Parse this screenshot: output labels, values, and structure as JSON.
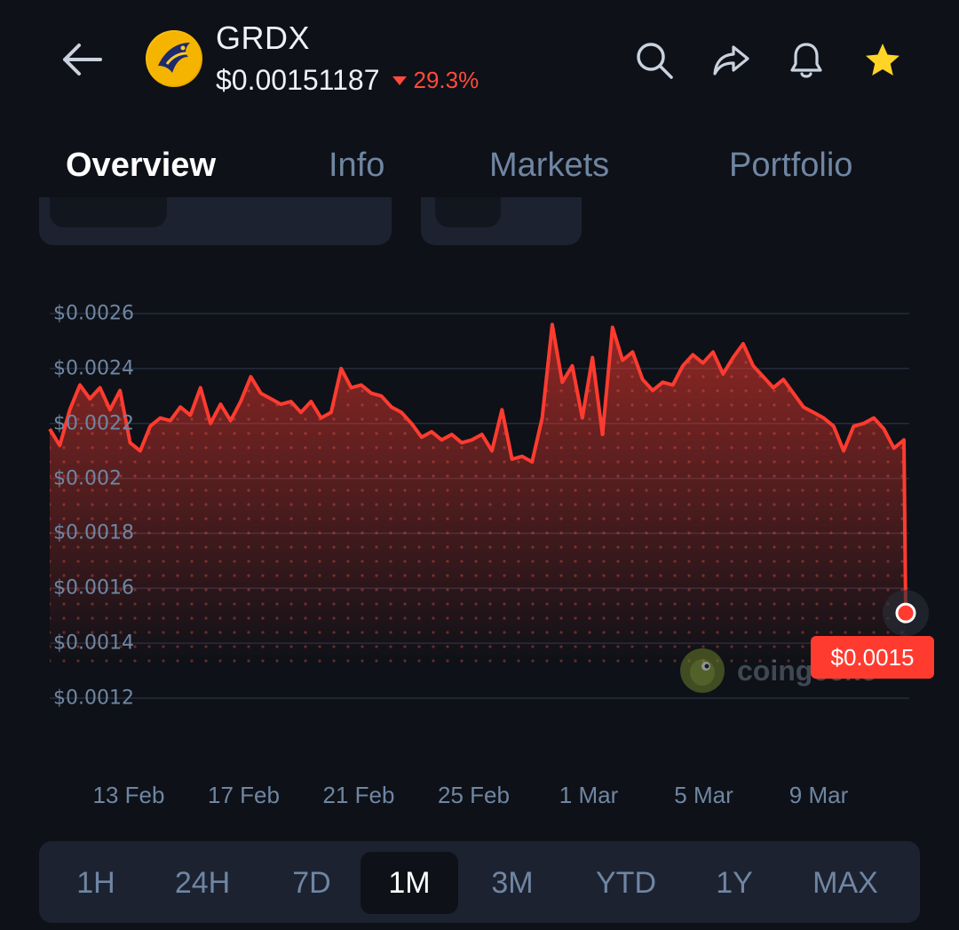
{
  "header": {
    "back_icon": "back-arrow-icon",
    "coin_logo": "gardex-logo",
    "symbol": "GRDX",
    "price": "$0.00151187",
    "change": "29.3%",
    "change_direction": "down",
    "change_color": "#ff4a3d",
    "actions": [
      {
        "icon": "search-icon"
      },
      {
        "icon": "share-icon"
      },
      {
        "icon": "bell-icon"
      },
      {
        "icon": "star-icon",
        "active": true,
        "color": "#ffd426"
      }
    ]
  },
  "tabs": [
    {
      "label": "Overview",
      "active": true
    },
    {
      "label": "Info",
      "active": false
    },
    {
      "label": "Markets",
      "active": false
    },
    {
      "label": "Portfolio",
      "active": false
    }
  ],
  "chart": {
    "current_price_label": "$0.0015",
    "watermark": "coingecko",
    "accent_color": "#ff3b30"
  },
  "chart_data": {
    "type": "area",
    "title": "",
    "xlabel": "",
    "ylabel": "",
    "y_ticks": [
      "$0.0026",
      "$0.0024",
      "$0.0022",
      "$0.002",
      "$0.0018",
      "$0.0016",
      "$0.0014",
      "$0.0012"
    ],
    "x_ticks": [
      "13 Feb",
      "17 Feb",
      "21 Feb",
      "25 Feb",
      "1 Mar",
      "5 Mar",
      "9 Mar"
    ],
    "ylim": [
      0.0012,
      0.0026
    ],
    "grid": true,
    "series": [
      {
        "x": [
          "11 Feb",
          "11 Feb",
          "11 Feb",
          "12 Feb",
          "12 Feb",
          "12 Feb",
          "13 Feb",
          "13 Feb",
          "13 Feb",
          "14 Feb",
          "14 Feb",
          "14 Feb",
          "15 Feb",
          "15 Feb",
          "15 Feb",
          "16 Feb",
          "16 Feb",
          "16 Feb",
          "17 Feb",
          "17 Feb",
          "17 Feb",
          "18 Feb",
          "18 Feb",
          "18 Feb",
          "19 Feb",
          "19 Feb",
          "19 Feb",
          "20 Feb",
          "20 Feb",
          "20 Feb",
          "21 Feb",
          "21 Feb",
          "21 Feb",
          "22 Feb",
          "22 Feb",
          "22 Feb",
          "23 Feb",
          "23 Feb",
          "23 Feb",
          "24 Feb",
          "24 Feb",
          "24 Feb",
          "25 Feb",
          "25 Feb",
          "25 Feb",
          "26 Feb",
          "26 Feb",
          "26 Feb",
          "27 Feb",
          "27 Feb",
          "27 Feb",
          "28 Feb",
          "28 Feb",
          "28 Feb",
          "1 Mar",
          "1 Mar",
          "1 Mar",
          "2 Mar",
          "2 Mar",
          "2 Mar",
          "3 Mar",
          "3 Mar",
          "3 Mar",
          "4 Mar",
          "4 Mar",
          "4 Mar",
          "5 Mar",
          "5 Mar",
          "5 Mar",
          "6 Mar",
          "6 Mar",
          "6 Mar",
          "7 Mar",
          "7 Mar",
          "7 Mar",
          "8 Mar",
          "8 Mar",
          "8 Mar",
          "9 Mar",
          "9 Mar",
          "9 Mar",
          "10 Mar",
          "10 Mar",
          "10 Mar",
          "11 Mar",
          "11 Mar",
          "11 Mar"
        ],
        "values": [
          0.00218,
          0.00212,
          0.00225,
          0.00234,
          0.00229,
          0.00233,
          0.00225,
          0.00232,
          0.00213,
          0.0021,
          0.00219,
          0.00222,
          0.00221,
          0.00226,
          0.00223,
          0.00233,
          0.0022,
          0.00227,
          0.00221,
          0.00228,
          0.00237,
          0.00231,
          0.00229,
          0.00227,
          0.00228,
          0.00224,
          0.00228,
          0.00222,
          0.00224,
          0.0024,
          0.00233,
          0.00234,
          0.00231,
          0.0023,
          0.00226,
          0.00224,
          0.0022,
          0.00215,
          0.00217,
          0.00214,
          0.00216,
          0.00213,
          0.00214,
          0.00216,
          0.0021,
          0.00225,
          0.00207,
          0.00208,
          0.00206,
          0.00222,
          0.00256,
          0.00235,
          0.00241,
          0.00222,
          0.00244,
          0.00216,
          0.00255,
          0.00243,
          0.00246,
          0.00236,
          0.00232,
          0.00235,
          0.00234,
          0.00241,
          0.00245,
          0.00242,
          0.00246,
          0.00238,
          0.00244,
          0.00249,
          0.00241,
          0.00237,
          0.00233,
          0.00236,
          0.00231,
          0.00226,
          0.00224,
          0.00222,
          0.00219,
          0.0021,
          0.00219,
          0.0022,
          0.00222,
          0.00218,
          0.00211,
          0.00214,
          0.00151
        ]
      }
    ]
  },
  "ranges": [
    {
      "label": "1H",
      "active": false
    },
    {
      "label": "24H",
      "active": false
    },
    {
      "label": "7D",
      "active": false
    },
    {
      "label": "1M",
      "active": true
    },
    {
      "label": "3M",
      "active": false
    },
    {
      "label": "YTD",
      "active": false
    },
    {
      "label": "1Y",
      "active": false
    },
    {
      "label": "MAX",
      "active": false
    }
  ]
}
